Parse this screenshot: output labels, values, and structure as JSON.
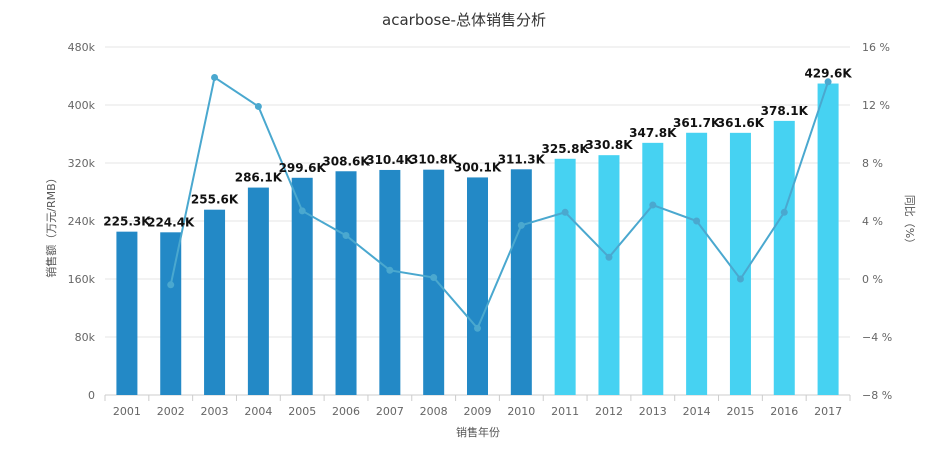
{
  "chart_data": {
    "type": "bar",
    "title": "acarbose-总体销售分析",
    "xlabel": "销售年份",
    "ylabel": "销售额（万元/RMB）",
    "y2label": "同比（%）",
    "ylim": [
      0,
      480
    ],
    "y2lim": [
      -8,
      16
    ],
    "yticks": [
      "0",
      "80k",
      "160k",
      "240k",
      "320k",
      "400k",
      "480k"
    ],
    "y2ticks": [
      "−8 %",
      "−4 %",
      "0 %",
      "4 %",
      "8 %",
      "12 %",
      "16 %"
    ],
    "categories": [
      "2001",
      "2002",
      "2003",
      "2004",
      "2005",
      "2006",
      "2007",
      "2008",
      "2009",
      "2010",
      "2011",
      "2012",
      "2013",
      "2014",
      "2015",
      "2016",
      "2017"
    ],
    "series": [
      {
        "name": "销售额",
        "type": "bar",
        "values": [
          225.3,
          224.4,
          255.6,
          286.1,
          299.6,
          308.6,
          310.4,
          310.8,
          300.1,
          311.3,
          325.8,
          330.8,
          347.8,
          361.7,
          361.6,
          378.1,
          429.6
        ],
        "labels": [
          "225.3K",
          "224.4K",
          "255.6K",
          "286.1K",
          "299.6K",
          "308.6K",
          "310.4K",
          "310.8K",
          "300.1K",
          "311.3K",
          "325.8K",
          "330.8K",
          "347.8K",
          "361.7K",
          "361.6K",
          "378.1K",
          "429.6K"
        ],
        "colors": [
          "#2389c6",
          "#2389c6",
          "#2389c6",
          "#2389c6",
          "#2389c6",
          "#2389c6",
          "#2389c6",
          "#2389c6",
          "#2389c6",
          "#2389c6",
          "#46d2f2",
          "#46d2f2",
          "#46d2f2",
          "#46d2f2",
          "#46d2f2",
          "#46d2f2",
          "#46d2f2"
        ]
      },
      {
        "name": "同比",
        "type": "line",
        "axis": "right",
        "color": "#4aa8cf",
        "values": [
          null,
          -0.4,
          13.9,
          11.9,
          4.7,
          3.0,
          0.6,
          0.1,
          -3.4,
          3.7,
          4.6,
          1.5,
          5.1,
          4.0,
          0.0,
          4.6,
          13.6
        ]
      }
    ]
  }
}
